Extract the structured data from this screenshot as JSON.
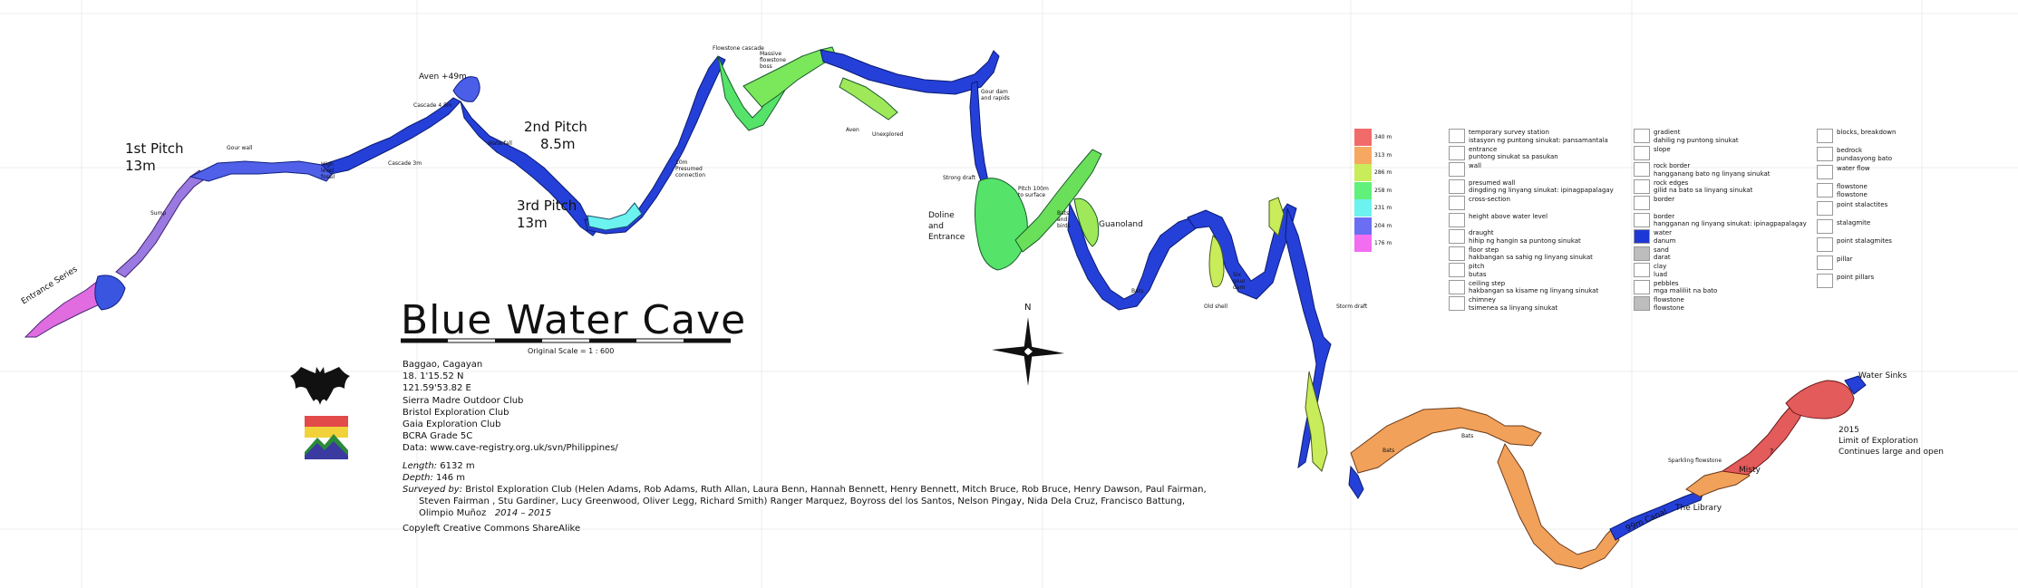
{
  "title": "Blue Water Cave",
  "scale_label": "Original Scale = 1 : 600",
  "location": [
    "Baggao, Cagayan",
    "18. 1'15.52 N",
    "121.59'53.82 E"
  ],
  "clubs": [
    "Sierra Madre Outdoor Club",
    "Bristol Exploration Club",
    "Gaia Exploration Club",
    "BCRA Grade 5C"
  ],
  "data_link": "Data: www.cave-registry.org.uk/svn/Philippines/",
  "length_label": "Length:",
  "length_value": "6132 m",
  "depth_label": "Depth:",
  "depth_value": "146 m",
  "surveyed_label": "Surveyed by:",
  "surveyed_text": "Bristol Exploration Club (Helen Adams, Rob Adams, Ruth Allan, Laura Benn, Hannah Bennett, Henry Bennett, Mitch Bruce, Rob Bruce, Henry Dawson, Paul Fairman,",
  "surveyed_text2": "Steven Fairman , Stu Gardiner, Lucy Greenwood, Oliver Legg, Richard Smith) Ranger Marquez, Boyross del los Santos, Nelson Pingay, Nida Dela Cruz, Francisco Battung,",
  "surveyed_text3": "Olimpio Muñoz",
  "survey_years": "2014 – 2015",
  "copyleft": "Copyleft Creative Commons ShareAlike",
  "compass_north": "N",
  "map_labels": {
    "entrance_series": "Entrance Series",
    "first_pitch": "1st Pitch",
    "first_pitch_depth": "13m",
    "second_pitch": "2nd Pitch",
    "second_pitch_depth": "8.5m",
    "third_pitch": "3rd Pitch",
    "third_pitch_depth": "13m",
    "aven": "Aven +49m",
    "cascade_45": "Cascade 4.5m",
    "cascade_3": "Cascade 3m",
    "waterfall": "Waterfall",
    "gour_wall": "Gour wall",
    "sump": "Sump",
    "high_level": "High level fossil",
    "flowstone_cascade": "Flowstone cascade",
    "massive_flowstone": "Massive flowstone boss",
    "presumed": "10m Presumed connection",
    "gour_dam": "Gour dam and rapids",
    "unexplored": "Unexplored",
    "aven2": "Aven",
    "strong_draft": "Strong draft",
    "doline": "Doline and Entrance",
    "pitch100": "Pitch 100m to surface",
    "bats_birds": "Bats and birds",
    "guanoland": "Guanoland",
    "bats": "Bats",
    "old_shell": "Old shell",
    "gour_dam2": "Six gour dam",
    "storm_draft": "Storm draft",
    "water_sinks": "Water Sinks",
    "exploration_year": "2015",
    "limit": "Limit of Exploration",
    "continues": "Continues large and open",
    "misty": "Misty",
    "the_library": "The Library",
    "sparkling": "Sparkling flowstone",
    "canal": "99m Canal",
    "bats2": "Bats",
    "bats3": "Bats",
    "question": "?"
  },
  "depth_legend": [
    {
      "label": "340 m",
      "color": "#f26b6b"
    },
    {
      "label": "313 m",
      "color": "#f7a860"
    },
    {
      "label": "286 m",
      "color": "#c8ec5a"
    },
    {
      "label": "258 m",
      "color": "#61f07a"
    },
    {
      "label": "231 m",
      "color": "#6cf2ef"
    },
    {
      "label": "204 m",
      "color": "#6a6ef2"
    },
    {
      "label": "176 m",
      "color": "#f36df0"
    }
  ],
  "legend_col1": [
    {
      "icon": "survey-station-icon",
      "text": "temporary survey station",
      "text2": "istasyon ng puntong sinukat: pansamantala"
    },
    {
      "icon": "entrance-icon",
      "text": "entrance",
      "text2": "puntong sinukat sa pasukan"
    },
    {
      "icon": "wall-icon",
      "text": "wall",
      "text2": ""
    },
    {
      "icon": "presumed-wall-icon",
      "text": "presumed wall",
      "text2": "dingding ng linyang sinukat: ipinagpapalagay"
    },
    {
      "icon": "cross-section-icon",
      "text": "cross-section",
      "text2": ""
    },
    {
      "icon": "height-icon",
      "text": "height above water level",
      "text2": ""
    },
    {
      "icon": "draught-icon",
      "text": "draught",
      "text2": "hihip ng hangin sa puntong sinukat"
    },
    {
      "icon": "floor-step-icon",
      "text": "floor step",
      "text2": "hakbangan sa sahig ng linyang sinukat"
    },
    {
      "icon": "pitch-icon",
      "text": "pitch",
      "text2": "butas"
    },
    {
      "icon": "ceiling-step-icon",
      "text": "ceiling step",
      "text2": "hakbangan sa kisame ng linyang sinukat"
    },
    {
      "icon": "chimney-icon",
      "text": "chimney",
      "text2": "tsimenea sa linyang sinukat"
    }
  ],
  "legend_col2": [
    {
      "icon": "gradient-icon",
      "text": "gradient",
      "text2": "dahilig ng puntong sinukat"
    },
    {
      "icon": "slope-icon",
      "text": "slope",
      "text2": ""
    },
    {
      "icon": "rock-border-icon",
      "text": "rock border",
      "text2": "hangganang bato ng linyang sinukat"
    },
    {
      "icon": "rock-edges-icon",
      "text": "rock edges",
      "text2": "gilid na bato sa linyang sinukat"
    },
    {
      "icon": "border-icon",
      "text": "border",
      "text2": ""
    },
    {
      "icon": "border2-icon",
      "text": "border",
      "text2": "hangganan ng linyang sinukat: ipinagpapalagay"
    },
    {
      "icon": "water-icon",
      "text": "water",
      "text2": "danum"
    },
    {
      "icon": "sand-icon",
      "text": "sand",
      "text2": "darat"
    },
    {
      "icon": "clay-icon",
      "text": "clay",
      "text2": "luad"
    },
    {
      "icon": "pebbles-icon",
      "text": "pebbles",
      "text2": "mga maliliit na bato"
    },
    {
      "icon": "flowstone-icon",
      "text": "flowstone",
      "text2": "flowstone"
    }
  ],
  "legend_col3": [
    {
      "icon": "blocks-icon",
      "text": "blocks, breakdown",
      "text2": ""
    },
    {
      "icon": "bedrock-icon",
      "text": "bedrock",
      "text2": "pundasyong bato"
    },
    {
      "icon": "water-flow-icon",
      "text": "water flow",
      "text2": ""
    },
    {
      "icon": "flowstone2-icon",
      "text": "flowstone",
      "text2": "flowstone"
    },
    {
      "icon": "point-stalactites-icon",
      "text": "point stalactites",
      "text2": ""
    },
    {
      "icon": "stalagmite-icon",
      "text": "stalagmite",
      "text2": ""
    },
    {
      "icon": "point-stalagmites-icon",
      "text": "point stalagmites",
      "text2": ""
    },
    {
      "icon": "pillar-icon",
      "text": "pillar",
      "text2": ""
    },
    {
      "icon": "point-pillars-icon",
      "text": "point pillars",
      "text2": ""
    }
  ],
  "colors": {
    "water": "#1d37d6",
    "green": "#55e36a",
    "lime": "#c8ec5a",
    "orange": "#f2a15a",
    "red": "#e35b5b",
    "cyan": "#6cf2ef",
    "purple": "#a060e0",
    "magenta": "#e06ce0"
  }
}
